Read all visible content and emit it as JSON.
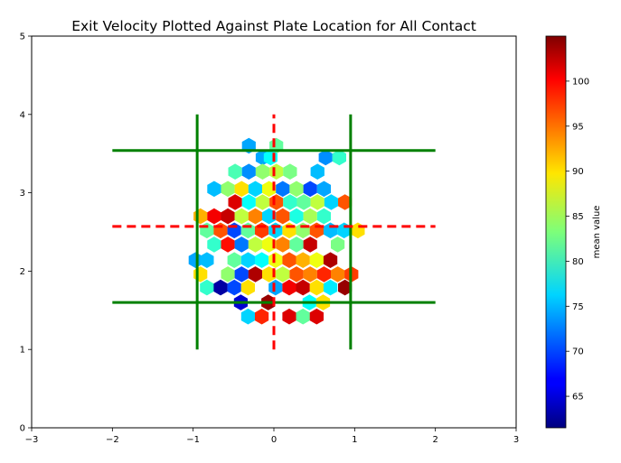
{
  "chart_data": {
    "type": "hexbin",
    "title": "Exit Velocity Plotted Against Plate Location for All Contact",
    "xlabel": "",
    "ylabel": "",
    "xlim": [
      -3,
      3
    ],
    "ylim": [
      0,
      5
    ],
    "x_ticks": [
      "−3",
      "−2",
      "−1",
      "0",
      "1",
      "2",
      "3"
    ],
    "y_ticks": [
      "0",
      "1",
      "2",
      "3",
      "4",
      "5"
    ],
    "grid": false,
    "colorbar": {
      "label": "mean value",
      "min": 61.5,
      "max": 105,
      "ticks": [
        "65",
        "70",
        "75",
        "80",
        "85",
        "90",
        "95",
        "100"
      ],
      "colormap": "jet"
    },
    "reference_lines": [
      {
        "kind": "horizontal",
        "y": 3.54,
        "x_from": -2,
        "x_to": 2,
        "style": "solid",
        "color": "#008000"
      },
      {
        "kind": "horizontal",
        "y": 1.6,
        "x_from": -2,
        "x_to": 2,
        "style": "solid",
        "color": "#008000"
      },
      {
        "kind": "vertical",
        "x": -0.95,
        "y_from": 1,
        "y_to": 4,
        "style": "solid",
        "color": "#008000"
      },
      {
        "kind": "vertical",
        "x": 0.95,
        "y_from": 1,
        "y_to": 4,
        "style": "solid",
        "color": "#008000"
      },
      {
        "kind": "horizontal",
        "y": 2.57,
        "x_from": -2,
        "x_to": 2,
        "style": "dashed",
        "color": "#ff0000"
      },
      {
        "kind": "vertical",
        "x": 0,
        "y_from": 1,
        "y_to": 4,
        "style": "dashed",
        "color": "#ff0000"
      }
    ],
    "bins": [
      {
        "x": -0.31,
        "y": 3.6,
        "v": 74
      },
      {
        "x": 0.03,
        "y": 3.6,
        "v": 82
      },
      {
        "x": -0.14,
        "y": 3.45,
        "v": 74
      },
      {
        "x": -0.04,
        "y": 3.45,
        "v": 78
      },
      {
        "x": 0.64,
        "y": 3.45,
        "v": 73
      },
      {
        "x": 0.81,
        "y": 3.45,
        "v": 80
      },
      {
        "x": -0.48,
        "y": 3.27,
        "v": 81
      },
      {
        "x": -0.31,
        "y": 3.27,
        "v": 73
      },
      {
        "x": -0.14,
        "y": 3.27,
        "v": 84
      },
      {
        "x": 0.03,
        "y": 3.27,
        "v": 86
      },
      {
        "x": 0.2,
        "y": 3.27,
        "v": 83
      },
      {
        "x": 0.54,
        "y": 3.27,
        "v": 75
      },
      {
        "x": -0.74,
        "y": 3.05,
        "v": 75
      },
      {
        "x": -0.57,
        "y": 3.05,
        "v": 84
      },
      {
        "x": -0.4,
        "y": 3.05,
        "v": 90
      },
      {
        "x": -0.23,
        "y": 3.05,
        "v": 76
      },
      {
        "x": -0.06,
        "y": 3.05,
        "v": 88
      },
      {
        "x": 0.11,
        "y": 3.05,
        "v": 72
      },
      {
        "x": 0.28,
        "y": 3.05,
        "v": 84
      },
      {
        "x": 0.45,
        "y": 3.05,
        "v": 70
      },
      {
        "x": 0.62,
        "y": 3.05,
        "v": 74
      },
      {
        "x": -0.48,
        "y": 2.88,
        "v": 101
      },
      {
        "x": -0.31,
        "y": 2.88,
        "v": 78
      },
      {
        "x": -0.14,
        "y": 2.88,
        "v": 86
      },
      {
        "x": 0.03,
        "y": 2.88,
        "v": 96
      },
      {
        "x": 0.2,
        "y": 2.88,
        "v": 80
      },
      {
        "x": 0.37,
        "y": 2.88,
        "v": 82
      },
      {
        "x": 0.54,
        "y": 2.88,
        "v": 86
      },
      {
        "x": 0.71,
        "y": 2.88,
        "v": 76
      },
      {
        "x": 0.88,
        "y": 2.88,
        "v": 96
      },
      {
        "x": -0.91,
        "y": 2.7,
        "v": 92
      },
      {
        "x": -0.74,
        "y": 2.7,
        "v": 100
      },
      {
        "x": -0.57,
        "y": 2.7,
        "v": 102
      },
      {
        "x": -0.4,
        "y": 2.7,
        "v": 86
      },
      {
        "x": -0.23,
        "y": 2.7,
        "v": 94
      },
      {
        "x": -0.06,
        "y": 2.7,
        "v": 76
      },
      {
        "x": 0.11,
        "y": 2.7,
        "v": 96
      },
      {
        "x": 0.28,
        "y": 2.7,
        "v": 79
      },
      {
        "x": 0.45,
        "y": 2.7,
        "v": 85
      },
      {
        "x": 0.62,
        "y": 2.7,
        "v": 80
      },
      {
        "x": -0.83,
        "y": 2.52,
        "v": 82
      },
      {
        "x": -0.66,
        "y": 2.52,
        "v": 96
      },
      {
        "x": -0.49,
        "y": 2.52,
        "v": 70
      },
      {
        "x": -0.32,
        "y": 2.52,
        "v": 82
      },
      {
        "x": -0.15,
        "y": 2.52,
        "v": 97
      },
      {
        "x": 0.02,
        "y": 2.52,
        "v": 76
      },
      {
        "x": 0.19,
        "y": 2.52,
        "v": 90
      },
      {
        "x": 0.36,
        "y": 2.52,
        "v": 84
      },
      {
        "x": 0.53,
        "y": 2.52,
        "v": 96
      },
      {
        "x": 0.7,
        "y": 2.52,
        "v": 75
      },
      {
        "x": 0.87,
        "y": 2.52,
        "v": 76
      },
      {
        "x": 1.04,
        "y": 2.52,
        "v": 90
      },
      {
        "x": -0.74,
        "y": 2.34,
        "v": 80
      },
      {
        "x": -0.57,
        "y": 2.34,
        "v": 99
      },
      {
        "x": -0.4,
        "y": 2.34,
        "v": 72
      },
      {
        "x": -0.23,
        "y": 2.34,
        "v": 86
      },
      {
        "x": -0.06,
        "y": 2.34,
        "v": 88
      },
      {
        "x": 0.11,
        "y": 2.34,
        "v": 94
      },
      {
        "x": 0.28,
        "y": 2.34,
        "v": 82
      },
      {
        "x": 0.45,
        "y": 2.34,
        "v": 102
      },
      {
        "x": 0.79,
        "y": 2.34,
        "v": 83
      },
      {
        "x": -0.97,
        "y": 2.14,
        "v": 74
      },
      {
        "x": -0.83,
        "y": 2.14,
        "v": 75
      },
      {
        "x": -0.49,
        "y": 2.14,
        "v": 82
      },
      {
        "x": -0.32,
        "y": 2.14,
        "v": 76
      },
      {
        "x": -0.15,
        "y": 2.14,
        "v": 78
      },
      {
        "x": 0.02,
        "y": 2.14,
        "v": 88
      },
      {
        "x": 0.19,
        "y": 2.14,
        "v": 96
      },
      {
        "x": 0.36,
        "y": 2.14,
        "v": 92
      },
      {
        "x": 0.53,
        "y": 2.14,
        "v": 88
      },
      {
        "x": 0.7,
        "y": 2.14,
        "v": 103
      },
      {
        "x": -0.91,
        "y": 1.96,
        "v": 90
      },
      {
        "x": -0.57,
        "y": 1.96,
        "v": 84
      },
      {
        "x": -0.4,
        "y": 1.96,
        "v": 70
      },
      {
        "x": -0.23,
        "y": 1.96,
        "v": 103
      },
      {
        "x": -0.06,
        "y": 1.96,
        "v": 90
      },
      {
        "x": 0.11,
        "y": 1.96,
        "v": 86
      },
      {
        "x": 0.28,
        "y": 1.96,
        "v": 96
      },
      {
        "x": 0.45,
        "y": 1.96,
        "v": 94
      },
      {
        "x": 0.62,
        "y": 1.96,
        "v": 98
      },
      {
        "x": 0.79,
        "y": 1.96,
        "v": 94
      },
      {
        "x": 0.96,
        "y": 1.96,
        "v": 97
      },
      {
        "x": -0.83,
        "y": 1.79,
        "v": 80
      },
      {
        "x": -0.66,
        "y": 1.79,
        "v": 63
      },
      {
        "x": -0.49,
        "y": 1.79,
        "v": 70
      },
      {
        "x": -0.32,
        "y": 1.79,
        "v": 90
      },
      {
        "x": 0.02,
        "y": 1.79,
        "v": 74
      },
      {
        "x": 0.19,
        "y": 1.79,
        "v": 100
      },
      {
        "x": 0.36,
        "y": 1.79,
        "v": 102
      },
      {
        "x": 0.53,
        "y": 1.79,
        "v": 90
      },
      {
        "x": 0.7,
        "y": 1.79,
        "v": 77
      },
      {
        "x": 0.88,
        "y": 1.79,
        "v": 104
      },
      {
        "x": -0.41,
        "y": 1.6,
        "v": 65
      },
      {
        "x": -0.07,
        "y": 1.6,
        "v": 104
      },
      {
        "x": 0.44,
        "y": 1.6,
        "v": 78
      },
      {
        "x": 0.61,
        "y": 1.6,
        "v": 90
      },
      {
        "x": -0.32,
        "y": 1.42,
        "v": 76
      },
      {
        "x": -0.15,
        "y": 1.42,
        "v": 98
      },
      {
        "x": 0.19,
        "y": 1.42,
        "v": 101
      },
      {
        "x": 0.36,
        "y": 1.42,
        "v": 82
      },
      {
        "x": 0.53,
        "y": 1.42,
        "v": 101
      }
    ]
  }
}
